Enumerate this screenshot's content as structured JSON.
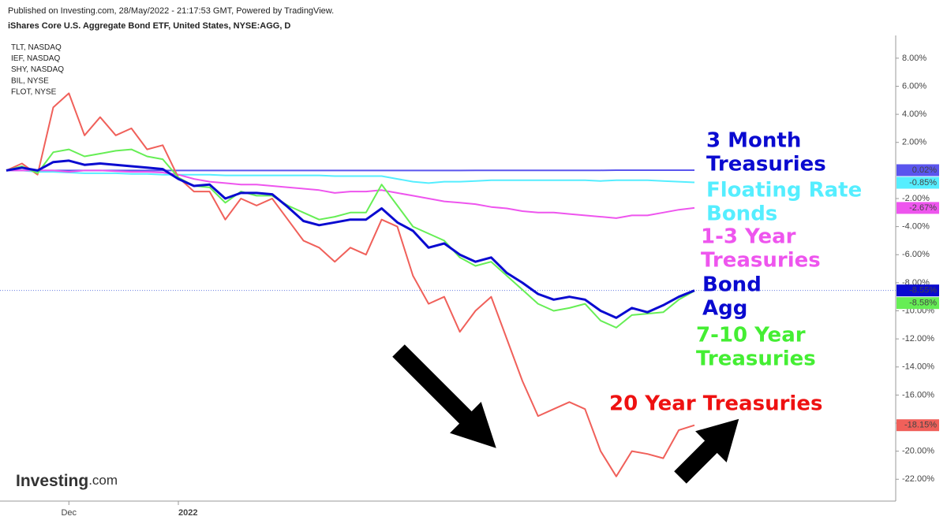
{
  "chart_data": {
    "type": "line",
    "caption": "Published on Investing.com, 28/May/2022 - 21:17:53 GMT, Powered by TradingView.",
    "watermark": [
      "Investing",
      ".com"
    ],
    "categories": [
      null,
      null,
      null,
      null,
      "Dec",
      null,
      null,
      null,
      null,
      null,
      null,
      "2022",
      null,
      null,
      null,
      null,
      null,
      null,
      null,
      null,
      null,
      null,
      null,
      null,
      null,
      null,
      null,
      null,
      null,
      null,
      null,
      null,
      null,
      null,
      null,
      null,
      null,
      null,
      null,
      null,
      null,
      null,
      null,
      null,
      null
    ],
    "ylim": [
      -23.5,
      9.9
    ],
    "yticks": [
      {
        "value": 8,
        "label": "8.00%"
      },
      {
        "value": 6,
        "label": "6.00%"
      },
      {
        "value": 4,
        "label": "4.00%"
      },
      {
        "value": 2,
        "label": "2.00%"
      },
      {
        "value": -2,
        "label": "-2.00%"
      },
      {
        "value": -4,
        "label": "-4.00%"
      },
      {
        "value": -6,
        "label": "-6.00%"
      },
      {
        "value": -8,
        "label": "-8.00%"
      },
      {
        "value": -10,
        "label": "-10.00%"
      },
      {
        "value": -12,
        "label": "-12.00%"
      },
      {
        "value": -14,
        "label": "-14.00%"
      },
      {
        "value": -16,
        "label": "-16.00%"
      },
      {
        "value": -18,
        "label": "-18.00%"
      },
      {
        "value": -20,
        "label": "-20.00%"
      },
      {
        "value": -22,
        "label": "-22.00%"
      }
    ],
    "grid": false,
    "series": [
      {
        "name": "iShares Core U.S. Aggregate Bond ETF, United States, NYSE:AGG, D",
        "color": "#0a0ad0",
        "width": 3,
        "values": [
          0,
          0.2,
          0,
          0.6,
          0.7,
          0.4,
          0.5,
          0.4,
          0.3,
          0.2,
          0.1,
          -0.6,
          -1.1,
          -1.0,
          -2.0,
          -1.6,
          -1.6,
          -1.7,
          -2.6,
          -3.6,
          -3.9,
          -3.7,
          -3.5,
          -3.5,
          -2.7,
          -3.7,
          -4.3,
          -5.5,
          -5.2,
          -6.0,
          -6.5,
          -6.2,
          -7.3,
          -8.0,
          -8.8,
          -9.2,
          -9.0,
          -9.2,
          -10.0,
          -10.5,
          -9.8,
          -10.1,
          -9.6,
          -9.0,
          -8.55
        ],
        "value_labels": [
          null,
          null,
          null,
          null,
          null,
          null,
          null,
          null,
          null,
          null,
          null,
          null,
          null,
          null,
          null,
          null,
          null,
          null,
          null,
          null,
          null,
          null,
          null,
          null,
          null,
          null,
          null,
          null,
          null,
          null,
          null,
          null,
          null,
          null,
          null,
          null,
          null,
          null,
          null,
          null,
          null,
          null,
          null,
          null,
          "-8.55%"
        ]
      },
      {
        "name": "TLT, NASDAQ",
        "color": "#f0605a",
        "width": 2,
        "values": [
          0,
          0.5,
          -0.3,
          4.5,
          5.5,
          2.5,
          3.8,
          2.5,
          3.0,
          1.5,
          1.8,
          -0.5,
          -1.5,
          -1.5,
          -3.5,
          -2.0,
          -2.5,
          -2.0,
          -3.5,
          -5.0,
          -5.5,
          -6.5,
          -5.5,
          -6.0,
          -3.5,
          -4.0,
          -7.5,
          -9.5,
          -9.0,
          -11.5,
          -10.0,
          -9.0,
          -12.0,
          -15.0,
          -17.5,
          -17.0,
          -16.5,
          -17.0,
          -20.0,
          -21.8,
          -20.0,
          -20.2,
          -20.5,
          -18.5,
          -18.15
        ],
        "value_labels": [
          null,
          null,
          null,
          null,
          null,
          null,
          null,
          null,
          null,
          null,
          null,
          null,
          null,
          null,
          null,
          null,
          null,
          null,
          null,
          null,
          null,
          null,
          null,
          null,
          null,
          null,
          null,
          null,
          null,
          null,
          null,
          null,
          null,
          null,
          null,
          null,
          null,
          null,
          null,
          null,
          null,
          null,
          null,
          null,
          "-18.15%"
        ]
      },
      {
        "name": "IEF, NASDAQ",
        "color": "#66ee55",
        "width": 2,
        "values": [
          0,
          0.3,
          -0.2,
          1.3,
          1.5,
          1.0,
          1.2,
          1.4,
          1.5,
          1.0,
          0.8,
          -0.5,
          -1.1,
          -1.2,
          -2.3,
          -1.5,
          -1.8,
          -1.8,
          -2.5,
          -3.0,
          -3.5,
          -3.3,
          -3.0,
          -3.0,
          -1.0,
          -2.5,
          -4.0,
          -4.5,
          -5.0,
          -6.2,
          -6.8,
          -6.5,
          -7.5,
          -8.5,
          -9.5,
          -10.0,
          -9.8,
          -9.5,
          -10.7,
          -11.2,
          -10.3,
          -10.2,
          -10.1,
          -9.2,
          -8.58
        ],
        "value_labels": [
          null,
          null,
          null,
          null,
          null,
          null,
          null,
          null,
          null,
          null,
          null,
          null,
          null,
          null,
          null,
          null,
          null,
          null,
          null,
          null,
          null,
          null,
          null,
          null,
          null,
          null,
          null,
          null,
          null,
          null,
          null,
          null,
          null,
          null,
          null,
          null,
          null,
          null,
          null,
          null,
          null,
          null,
          null,
          null,
          "-8.58%"
        ]
      },
      {
        "name": "SHY, NASDAQ",
        "color": "#ee55ee",
        "width": 2,
        "values": [
          0,
          0,
          0,
          0,
          -0.1,
          0,
          0,
          -0.05,
          -0.1,
          -0.1,
          -0.15,
          -0.3,
          -0.6,
          -0.8,
          -0.9,
          -1.0,
          -1.0,
          -1.1,
          -1.2,
          -1.3,
          -1.4,
          -1.6,
          -1.5,
          -1.5,
          -1.4,
          -1.6,
          -1.8,
          -2.0,
          -2.2,
          -2.3,
          -2.4,
          -2.6,
          -2.7,
          -2.9,
          -3.0,
          -3.0,
          -3.1,
          -3.2,
          -3.3,
          -3.4,
          -3.2,
          -3.2,
          -3.0,
          -2.8,
          -2.67
        ],
        "value_labels": [
          null,
          null,
          null,
          null,
          null,
          null,
          null,
          null,
          null,
          null,
          null,
          null,
          null,
          null,
          null,
          null,
          null,
          null,
          null,
          null,
          null,
          null,
          null,
          null,
          null,
          null,
          null,
          null,
          null,
          null,
          null,
          null,
          null,
          null,
          null,
          null,
          null,
          null,
          null,
          null,
          null,
          null,
          null,
          null,
          "-2.67%"
        ]
      },
      {
        "name": "BIL, NYSE",
        "color": "#5a55ee",
        "width": 2,
        "values": [
          0,
          0,
          0,
          0,
          0,
          0,
          0,
          0,
          0,
          0,
          0,
          0,
          0,
          0,
          0,
          0,
          0,
          0,
          0,
          0,
          0,
          0,
          0,
          0,
          0,
          0,
          0,
          0,
          0,
          0,
          0.01,
          0.01,
          0.01,
          0.01,
          0.01,
          0.01,
          0.01,
          0.01,
          0.01,
          0.02,
          0.02,
          0.02,
          0.02,
          0.02,
          0.02
        ],
        "value_labels": [
          null,
          null,
          null,
          null,
          null,
          null,
          null,
          null,
          null,
          null,
          null,
          null,
          null,
          null,
          null,
          null,
          null,
          null,
          null,
          null,
          null,
          null,
          null,
          null,
          null,
          null,
          null,
          null,
          null,
          null,
          null,
          null,
          null,
          null,
          null,
          null,
          null,
          null,
          null,
          null,
          null,
          null,
          null,
          null,
          "0.02%"
        ]
      },
      {
        "name": "FLOT, NYSE",
        "color": "#55eeff",
        "width": 2,
        "values": [
          0,
          0,
          -0.1,
          -0.1,
          -0.15,
          -0.2,
          -0.2,
          -0.2,
          -0.25,
          -0.25,
          -0.3,
          -0.3,
          -0.3,
          -0.3,
          -0.35,
          -0.35,
          -0.35,
          -0.35,
          -0.35,
          -0.35,
          -0.35,
          -0.4,
          -0.4,
          -0.4,
          -0.4,
          -0.6,
          -0.8,
          -0.9,
          -0.8,
          -0.8,
          -0.75,
          -0.7,
          -0.7,
          -0.7,
          -0.7,
          -0.7,
          -0.7,
          -0.7,
          -0.75,
          -0.7,
          -0.7,
          -0.7,
          -0.75,
          -0.8,
          -0.85
        ],
        "value_labels": [
          null,
          null,
          null,
          null,
          null,
          null,
          null,
          null,
          null,
          null,
          null,
          null,
          null,
          null,
          null,
          null,
          null,
          null,
          null,
          null,
          null,
          null,
          null,
          null,
          null,
          null,
          null,
          null,
          null,
          null,
          null,
          null,
          null,
          null,
          null,
          null,
          null,
          null,
          null,
          null,
          null,
          null,
          null,
          null,
          "-0.85%"
        ]
      }
    ],
    "annotations": [
      {
        "text": [
          "3 Month",
          "Treasuries"
        ],
        "color": "#0a0ad0"
      },
      {
        "text": [
          "Floating Rate",
          "Bonds"
        ],
        "color": "#55eeff"
      },
      {
        "text": [
          "1-3 Year",
          "Treasuries"
        ],
        "color": "#ee55ee"
      },
      {
        "text": [
          "Bond",
          "Agg"
        ],
        "color": "#0a0ad0"
      },
      {
        "text": [
          "7-10 Year",
          "Treasuries"
        ],
        "color": "#44ee33"
      },
      {
        "text": [
          "20 Year Treasuries"
        ],
        "color": "#ee1111"
      }
    ]
  }
}
